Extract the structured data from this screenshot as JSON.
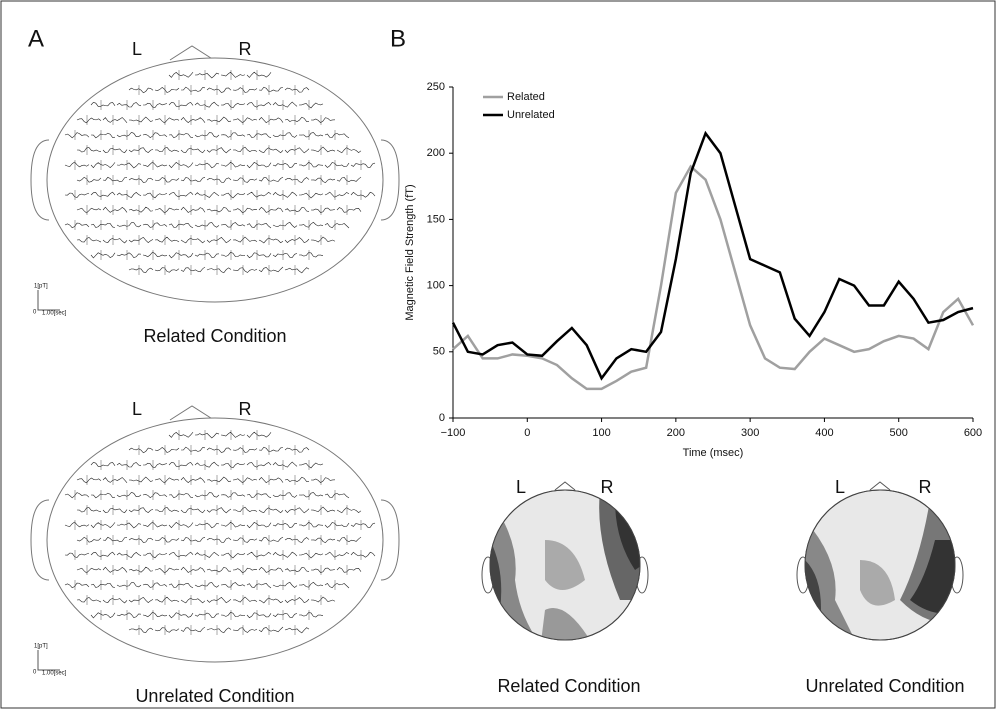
{
  "panel_a": {
    "label": "A",
    "heads": [
      {
        "left": "L",
        "right": "R",
        "caption": "Related Condition",
        "scale": {
          "y": "1[pT]",
          "zero": "0",
          "x": "1.00[sec]"
        }
      },
      {
        "left": "L",
        "right": "R",
        "caption": "Unrelated Condition",
        "scale": {
          "y": "1[pT]",
          "zero": "0",
          "x": "1.00[sec]"
        }
      }
    ]
  },
  "panel_b": {
    "label": "B",
    "maps": [
      {
        "left": "L",
        "right": "R",
        "caption": "Related Condition"
      },
      {
        "left": "L",
        "right": "R",
        "caption": "Unrelated Condition"
      }
    ]
  },
  "chart_data": {
    "type": "line",
    "y_label": "Magnetic Field Strength (fT)",
    "x_label": "Time (msec)",
    "x": [
      -100,
      -80,
      -60,
      -40,
      -20,
      0,
      20,
      40,
      60,
      80,
      100,
      120,
      140,
      160,
      180,
      200,
      220,
      240,
      260,
      280,
      300,
      320,
      340,
      360,
      380,
      400,
      420,
      440,
      460,
      480,
      500,
      520,
      540,
      560,
      580,
      600
    ],
    "series": [
      {
        "name": "Related",
        "color": "#a0a0a0",
        "values": [
          52,
          62,
          45,
          45,
          48,
          47,
          45,
          40,
          30,
          22,
          22,
          28,
          35,
          38,
          100,
          170,
          190,
          180,
          150,
          110,
          70,
          45,
          38,
          37,
          50,
          60,
          55,
          50,
          52,
          58,
          62,
          60,
          52,
          80,
          90,
          70
        ]
      },
      {
        "name": "Unrelated",
        "color": "#000000",
        "values": [
          72,
          50,
          48,
          55,
          57,
          48,
          47,
          58,
          68,
          55,
          30,
          45,
          52,
          50,
          65,
          120,
          185,
          215,
          200,
          160,
          120,
          115,
          110,
          75,
          62,
          80,
          105,
          100,
          85,
          85,
          103,
          90,
          72,
          74,
          80,
          83
        ]
      }
    ],
    "xlim": [
      -100,
      600
    ],
    "ylim": [
      0,
      250
    ],
    "xticks": [
      {
        "value": -100,
        "label": "−100"
      },
      0,
      100,
      200,
      300,
      400,
      500,
      600
    ],
    "yticks": [
      0,
      50,
      100,
      150,
      200,
      250
    ],
    "legend": "upper-left"
  }
}
